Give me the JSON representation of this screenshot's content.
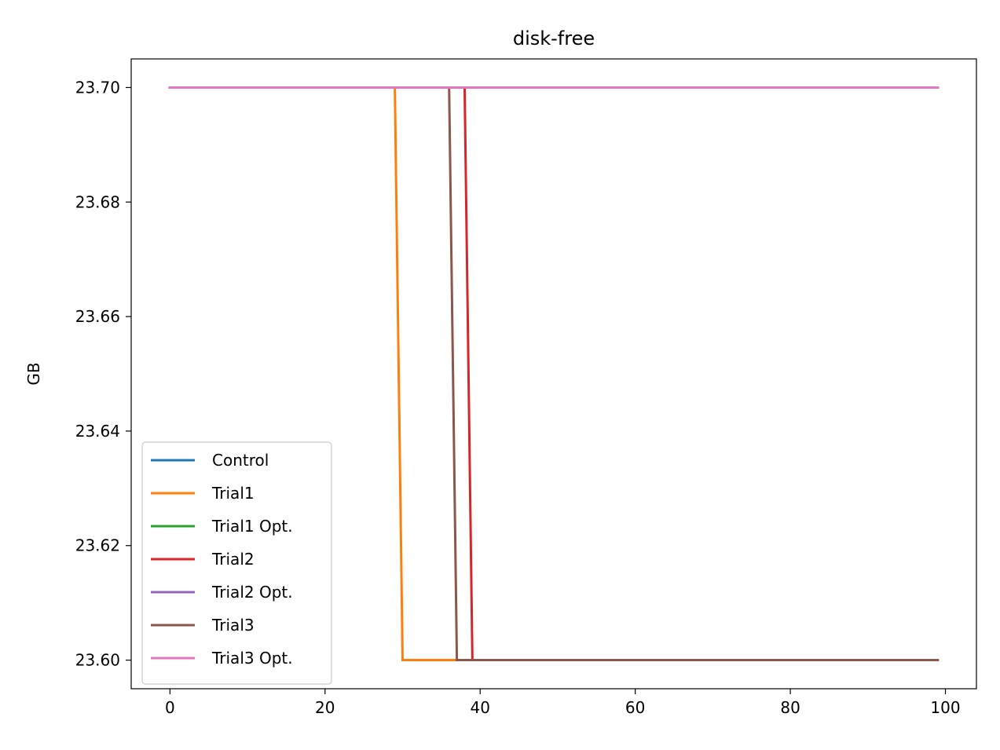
{
  "chart_data": {
    "type": "line",
    "title": "disk-free",
    "xlabel": "",
    "ylabel": "GB",
    "xlim": [
      -5,
      104
    ],
    "ylim": [
      23.595,
      23.705
    ],
    "x_ticks": [
      0,
      20,
      40,
      60,
      80,
      100
    ],
    "y_ticks": [
      23.6,
      23.62,
      23.64,
      23.66,
      23.68,
      23.7
    ],
    "x_tick_labels": [
      "0",
      "20",
      "40",
      "60",
      "80",
      "100"
    ],
    "y_tick_labels": [
      "23.60",
      "23.62",
      "23.64",
      "23.66",
      "23.68",
      "23.70"
    ],
    "grid": false,
    "legend_position": "lower-left",
    "series": [
      {
        "name": "Control",
        "color": "#1f77b4",
        "points": [
          [
            0,
            23.7
          ],
          [
            99,
            23.7
          ]
        ]
      },
      {
        "name": "Trial1",
        "color": "#ff7f0e",
        "points": [
          [
            0,
            23.7
          ],
          [
            29,
            23.7
          ],
          [
            30,
            23.6
          ],
          [
            99,
            23.6
          ]
        ]
      },
      {
        "name": "Trial1 Opt.",
        "color": "#2ca02c",
        "points": [
          [
            0,
            23.7
          ],
          [
            99,
            23.7
          ]
        ]
      },
      {
        "name": "Trial2",
        "color": "#d62728",
        "points": [
          [
            0,
            23.7
          ],
          [
            38,
            23.7
          ],
          [
            39,
            23.6
          ],
          [
            99,
            23.6
          ]
        ]
      },
      {
        "name": "Trial2 Opt.",
        "color": "#9467bd",
        "points": [
          [
            0,
            23.7
          ],
          [
            99,
            23.7
          ]
        ]
      },
      {
        "name": "Trial3",
        "color": "#8c564b",
        "points": [
          [
            0,
            23.7
          ],
          [
            36,
            23.7
          ],
          [
            37,
            23.6
          ],
          [
            99,
            23.6
          ]
        ]
      },
      {
        "name": "Trial3 Opt.",
        "color": "#e377c2",
        "points": [
          [
            0,
            23.7
          ],
          [
            99,
            23.7
          ]
        ]
      }
    ]
  }
}
